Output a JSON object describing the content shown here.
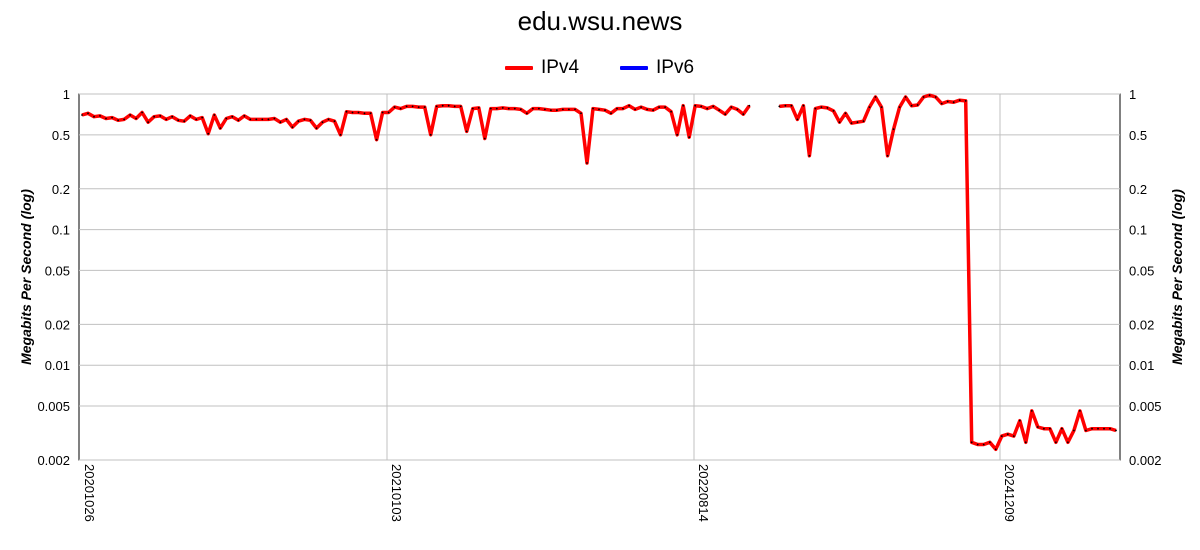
{
  "chart_data": {
    "type": "line",
    "title": "edu.wsu.news",
    "ylabel": "Megabits Per Second (log)",
    "y_scale": "log",
    "ylim": [
      0.002,
      1
    ],
    "y_ticks": [
      {
        "value": 1,
        "label": "1"
      },
      {
        "value": 0.5,
        "label": "0.5"
      },
      {
        "value": 0.2,
        "label": "0.2"
      },
      {
        "value": 0.1,
        "label": "0.1"
      },
      {
        "value": 0.05,
        "label": "0.05"
      },
      {
        "value": 0.02,
        "label": "0.02"
      },
      {
        "value": 0.01,
        "label": "0.01"
      },
      {
        "value": 0.005,
        "label": "0.005"
      },
      {
        "value": 0.002,
        "label": "0.002"
      }
    ],
    "x_ticks": [
      "20201026",
      "20210103",
      "20220814",
      "20241209"
    ],
    "grid": true,
    "legend_position": "top",
    "series": [
      {
        "name": "IPv4",
        "color": "#ff0000",
        "values": [
          0.7,
          0.72,
          0.68,
          0.69,
          0.66,
          0.67,
          0.64,
          0.65,
          0.7,
          0.66,
          0.73,
          0.62,
          0.68,
          0.69,
          0.65,
          0.68,
          0.64,
          0.63,
          0.69,
          0.65,
          0.67,
          0.51,
          0.7,
          0.56,
          0.66,
          0.68,
          0.64,
          0.69,
          0.65,
          0.65,
          0.65,
          0.65,
          0.66,
          0.62,
          0.65,
          0.57,
          0.63,
          0.65,
          0.64,
          0.56,
          0.62,
          0.65,
          0.63,
          0.5,
          0.74,
          0.73,
          0.73,
          0.72,
          0.72,
          0.46,
          0.73,
          0.73,
          0.8,
          0.78,
          0.81,
          0.81,
          0.8,
          0.8,
          0.5,
          0.81,
          0.82,
          0.82,
          0.81,
          0.81,
          0.53,
          0.78,
          0.79,
          0.47,
          0.78,
          0.78,
          0.79,
          0.78,
          0.78,
          0.77,
          0.72,
          0.78,
          0.78,
          0.77,
          0.76,
          0.76,
          0.77,
          0.77,
          0.77,
          0.72,
          0.31,
          0.78,
          0.77,
          0.76,
          0.72,
          0.78,
          0.78,
          0.82,
          0.77,
          0.8,
          0.77,
          0.76,
          0.8,
          0.8,
          0.74,
          0.5,
          0.82,
          0.48,
          0.82,
          0.81,
          0.78,
          0.81,
          0.76,
          0.71,
          0.8,
          0.77,
          0.71,
          0.82,
          null,
          null,
          null,
          null,
          0.81,
          0.82,
          0.82,
          0.65,
          0.82,
          0.35,
          0.78,
          0.8,
          0.79,
          0.75,
          0.62,
          0.72,
          0.61,
          0.62,
          0.63,
          0.8,
          0.95,
          0.8,
          0.35,
          0.55,
          0.8,
          0.95,
          0.82,
          0.83,
          0.95,
          0.98,
          0.95,
          0.85,
          0.88,
          0.87,
          0.9,
          0.89,
          0.0027,
          0.0026,
          0.0026,
          0.0027,
          0.0024,
          0.003,
          0.0031,
          0.003,
          0.0039,
          0.0027,
          0.0046,
          0.0035,
          0.0034,
          0.0034,
          0.0027,
          0.0034,
          0.0027,
          0.0033,
          0.0046,
          0.0033,
          0.0034,
          0.0034,
          0.0034,
          0.0034,
          0.0033
        ]
      },
      {
        "name": "IPv6",
        "color": "#0000ff",
        "values": []
      }
    ]
  }
}
